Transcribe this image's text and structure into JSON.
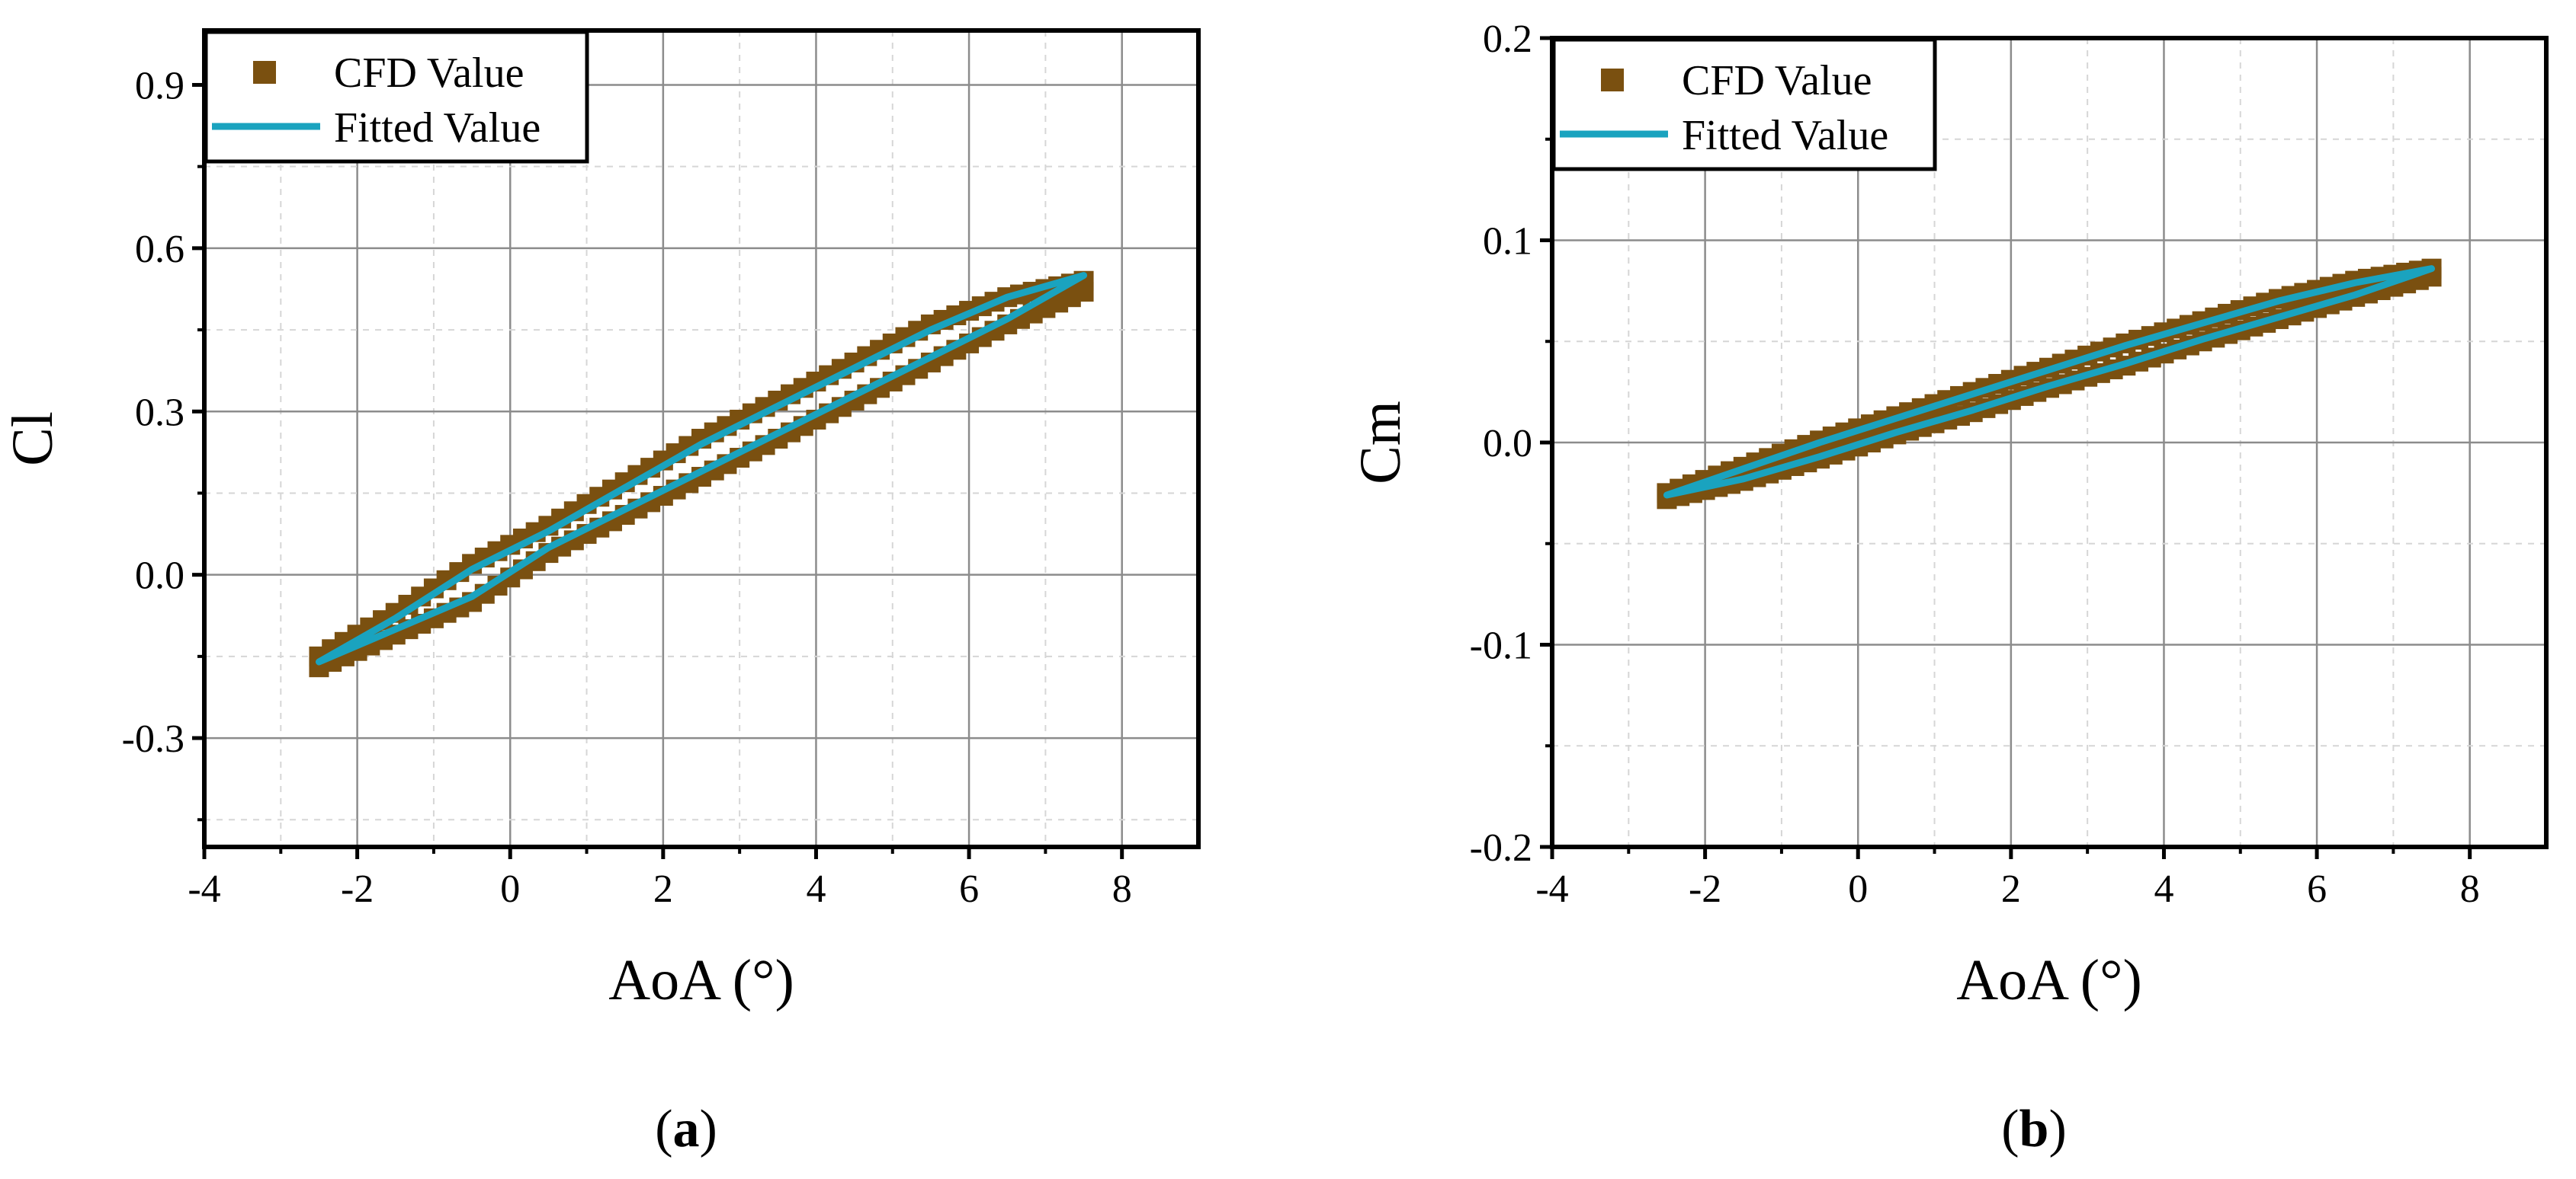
{
  "colors": {
    "cfd": "#7a5010",
    "fitted": "#1aa3bf",
    "grid_major": "#8c8c8c",
    "grid_minor": "#d6d6d6"
  },
  "chart_data": [
    {
      "type": "scatter",
      "panel_label": "a",
      "xlabel": "AoA (°)",
      "ylabel": "Cl",
      "xlim": [
        -4,
        9
      ],
      "ylim": [
        -0.5,
        1.0
      ],
      "xticks": [
        -4,
        -2,
        0,
        2,
        4,
        6,
        8
      ],
      "xtick_labels": [
        "-4",
        "-2",
        "0",
        "2",
        "4",
        "6",
        "8"
      ],
      "yticks": [
        -0.3,
        0.0,
        0.3,
        0.6,
        0.9
      ],
      "ytick_labels": [
        "-0.3",
        "0.0",
        "0.3",
        "0.6",
        "0.9"
      ],
      "grid": true,
      "legend_position": "top-left",
      "series": [
        {
          "name": "CFD Value",
          "kind": "markers",
          "upper_branch": {
            "x": [
              -2.5,
              -1.5,
              -0.5,
              0.5,
              1.5,
              2.5,
              3.5,
              4.5,
              5.5,
              6.5,
              7.5
            ],
            "y": [
              -0.15,
              -0.07,
              0.02,
              0.09,
              0.17,
              0.25,
              0.32,
              0.39,
              0.46,
              0.51,
              0.54
            ]
          },
          "lower_branch": {
            "x": [
              -2.5,
              -1.5,
              -0.5,
              0.5,
              1.5,
              2.5,
              3.5,
              4.5,
              5.5,
              6.5,
              7.5
            ],
            "y": [
              -0.17,
              -0.11,
              -0.05,
              0.04,
              0.11,
              0.18,
              0.25,
              0.32,
              0.39,
              0.46,
              0.52
            ]
          }
        },
        {
          "name": "Fitted Value",
          "kind": "line",
          "upper_branch": {
            "x": [
              -2.5,
              -1.5,
              -0.5,
              0.5,
              1.5,
              2.5,
              3.5,
              4.5,
              5.5,
              6.5,
              7.5
            ],
            "y": [
              -0.16,
              -0.08,
              0.01,
              0.08,
              0.16,
              0.24,
              0.31,
              0.38,
              0.45,
              0.51,
              0.55
            ]
          },
          "lower_branch": {
            "x": [
              -2.5,
              -1.5,
              -0.5,
              0.5,
              1.5,
              2.5,
              3.5,
              4.5,
              5.5,
              6.5,
              7.5
            ],
            "y": [
              -0.16,
              -0.1,
              -0.04,
              0.05,
              0.12,
              0.19,
              0.26,
              0.33,
              0.4,
              0.47,
              0.55
            ]
          }
        }
      ]
    },
    {
      "type": "scatter",
      "panel_label": "b",
      "xlabel": "AoA (°)",
      "ylabel": "Cm",
      "xlim": [
        -4,
        9
      ],
      "ylim": [
        -0.2,
        0.2
      ],
      "xticks": [
        -4,
        -2,
        0,
        2,
        4,
        6,
        8
      ],
      "xtick_labels": [
        "-4",
        "-2",
        "0",
        "2",
        "4",
        "6",
        "8"
      ],
      "yticks": [
        -0.2,
        -0.1,
        0.0,
        0.1,
        0.2
      ],
      "ytick_labels": [
        "-0.2",
        "-0.1",
        "0.0",
        "0.1",
        "0.2"
      ],
      "grid": true,
      "legend_position": "top-left",
      "series": [
        {
          "name": "CFD Value",
          "kind": "markers",
          "upper_branch": {
            "x": [
              -2.5,
              -1.5,
              -0.5,
              0.5,
              1.5,
              2.5,
              3.5,
              4.5,
              5.5,
              6.5,
              7.5
            ],
            "y": [
              -0.025,
              -0.012,
              0.001,
              0.013,
              0.025,
              0.037,
              0.049,
              0.06,
              0.071,
              0.08,
              0.086
            ]
          },
          "lower_branch": {
            "x": [
              -2.5,
              -1.5,
              -0.5,
              0.5,
              1.5,
              2.5,
              3.5,
              4.5,
              5.5,
              6.5,
              7.5
            ],
            "y": [
              -0.028,
              -0.019,
              -0.008,
              0.004,
              0.015,
              0.027,
              0.038,
              0.05,
              0.061,
              0.072,
              0.082
            ]
          }
        },
        {
          "name": "Fitted Value",
          "kind": "line",
          "upper_branch": {
            "x": [
              -2.5,
              -1.5,
              -0.5,
              0.5,
              1.5,
              2.5,
              3.5,
              4.5,
              5.5,
              6.5,
              7.5
            ],
            "y": [
              -0.026,
              -0.013,
              0.0,
              0.012,
              0.024,
              0.036,
              0.048,
              0.059,
              0.07,
              0.079,
              0.086
            ]
          },
          "lower_branch": {
            "x": [
              -2.5,
              -1.5,
              -0.5,
              0.5,
              1.5,
              2.5,
              3.5,
              4.5,
              5.5,
              6.5,
              7.5
            ],
            "y": [
              -0.026,
              -0.018,
              -0.007,
              0.005,
              0.016,
              0.028,
              0.039,
              0.051,
              0.062,
              0.073,
              0.086
            ]
          }
        }
      ]
    }
  ]
}
